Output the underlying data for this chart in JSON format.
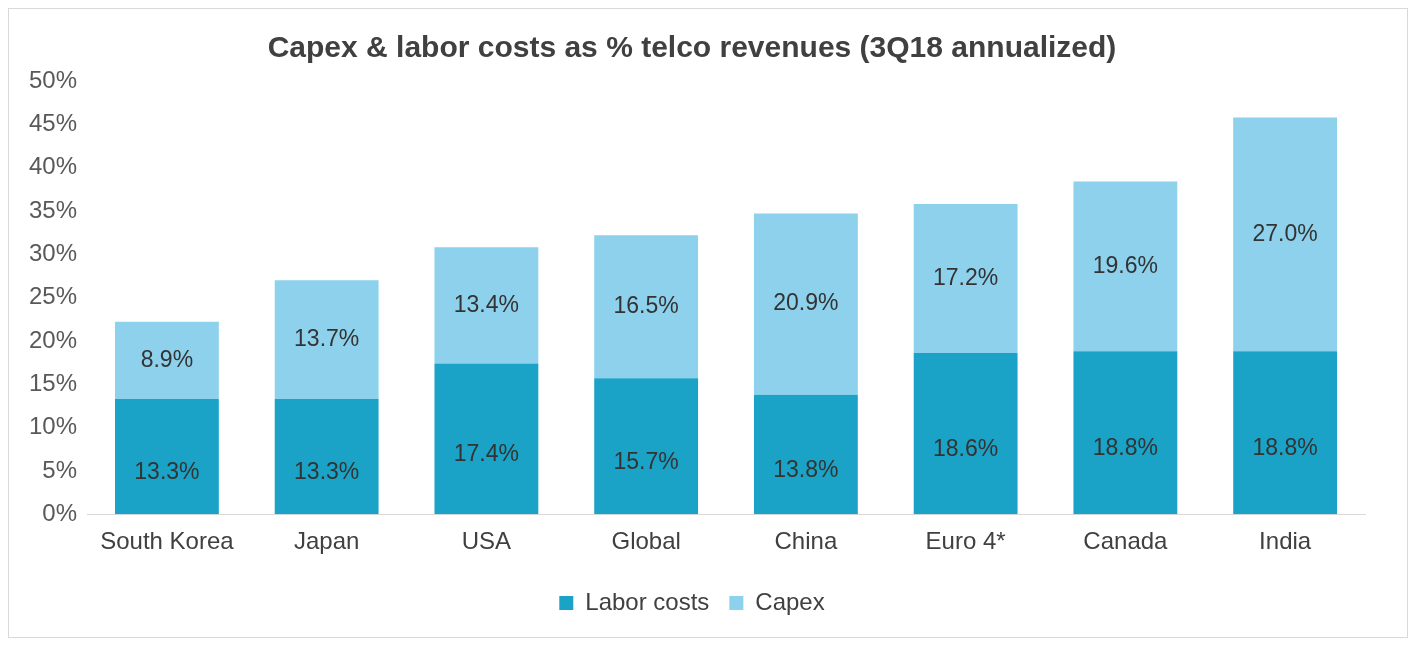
{
  "chart_data": {
    "type": "bar",
    "title": "Capex & labor costs as % telco revenues (3Q18 annualized)",
    "categories": [
      "South Korea",
      "Japan",
      "USA",
      "Global",
      "China",
      "Euro 4*",
      "Canada",
      "India"
    ],
    "stacked": true,
    "series": [
      {
        "name": "Labor costs",
        "color": "#1aa3c6",
        "values": [
          13.3,
          13.3,
          17.4,
          15.7,
          13.8,
          18.6,
          18.8,
          18.8
        ],
        "value_labels": [
          "13.3%",
          "13.3%",
          "17.4%",
          "15.7%",
          "13.8%",
          "18.6%",
          "18.8%",
          "18.8%"
        ]
      },
      {
        "name": "Capex",
        "color": "#8dd1ec",
        "values": [
          8.9,
          13.7,
          13.4,
          16.5,
          20.9,
          17.2,
          19.6,
          27.0
        ],
        "value_labels": [
          "8.9%",
          "13.7%",
          "13.4%",
          "16.5%",
          "20.9%",
          "17.2%",
          "19.6%",
          "27.0%"
        ]
      }
    ],
    "ylim": [
      0,
      50
    ],
    "yticks": [
      {
        "value": 0,
        "label": "0%"
      },
      {
        "value": 5,
        "label": "5%"
      },
      {
        "value": 10,
        "label": "10%"
      },
      {
        "value": 15,
        "label": "15%"
      },
      {
        "value": 20,
        "label": "20%"
      },
      {
        "value": 25,
        "label": "25%"
      },
      {
        "value": 30,
        "label": "30%"
      },
      {
        "value": 35,
        "label": "35%"
      },
      {
        "value": 40,
        "label": "40%"
      },
      {
        "value": 45,
        "label": "45%"
      },
      {
        "value": 50,
        "label": "50%"
      }
    ],
    "grid": false,
    "legend": "bottom"
  }
}
